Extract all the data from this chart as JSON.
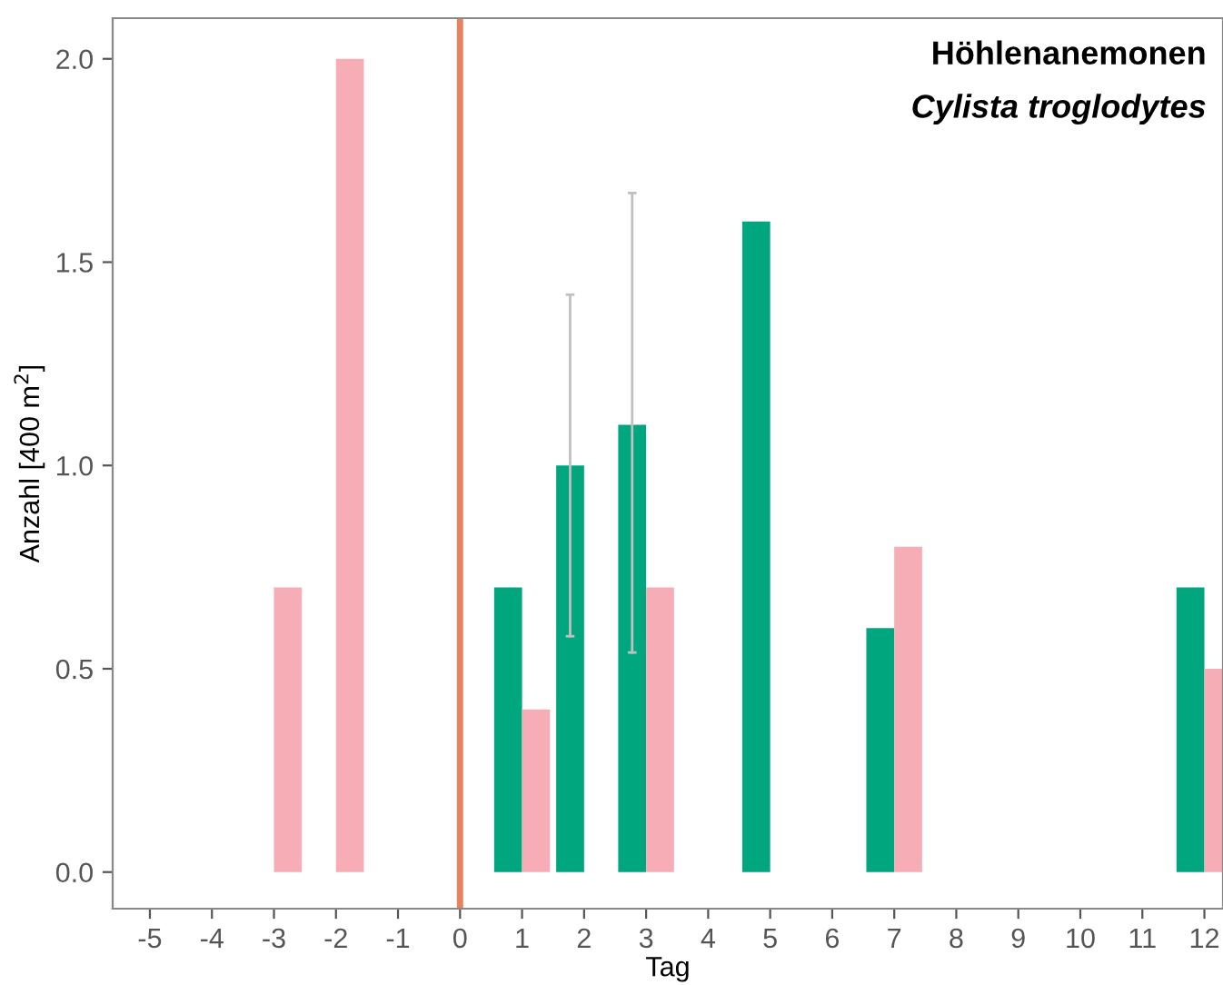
{
  "chart_data": {
    "type": "bar",
    "title": "Höhlenanemonen",
    "subtitle": "Cylista troglodytes",
    "xlabel": "Tag",
    "ylabel": "Anzahl [400 m$^{2}$]",
    "series": [
      {
        "color": "#00a67e",
        "x": [
          1,
          2,
          3,
          5,
          7,
          12
        ],
        "values": [
          0.7,
          1.0,
          1.1,
          1.6,
          0.6,
          0.7
        ],
        "errors": [
          null,
          [
            0.58,
            1.42
          ],
          [
            0.54,
            1.67
          ],
          null,
          null,
          null
        ]
      },
      {
        "color": "#f6adb5",
        "x": [
          -3,
          -2,
          1,
          3,
          7,
          12
        ],
        "values": [
          0.7,
          2.0,
          0.4,
          0.7,
          0.8,
          0.5
        ]
      }
    ],
    "ref_lines": [
      {
        "axis": "x",
        "value": 0,
        "color": "#e8825f"
      }
    ],
    "xlim": [
      -5.6,
      12.3
    ],
    "xticks": [
      -5,
      -4,
      -3,
      -2,
      -1,
      0,
      1,
      2,
      3,
      4,
      5,
      6,
      7,
      8,
      9,
      10,
      11,
      12
    ],
    "ylim": [
      -0.09,
      2.1
    ],
    "yticks": [
      {
        "value": 0,
        "label": "0.0"
      },
      {
        "value": 0.5,
        "label": "0.5"
      },
      {
        "value": 1,
        "label": "1.0"
      },
      {
        "value": 1.5,
        "label": "1.5"
      },
      {
        "value": 2,
        "label": "2.0"
      }
    ],
    "grid": false,
    "legend": false
  }
}
